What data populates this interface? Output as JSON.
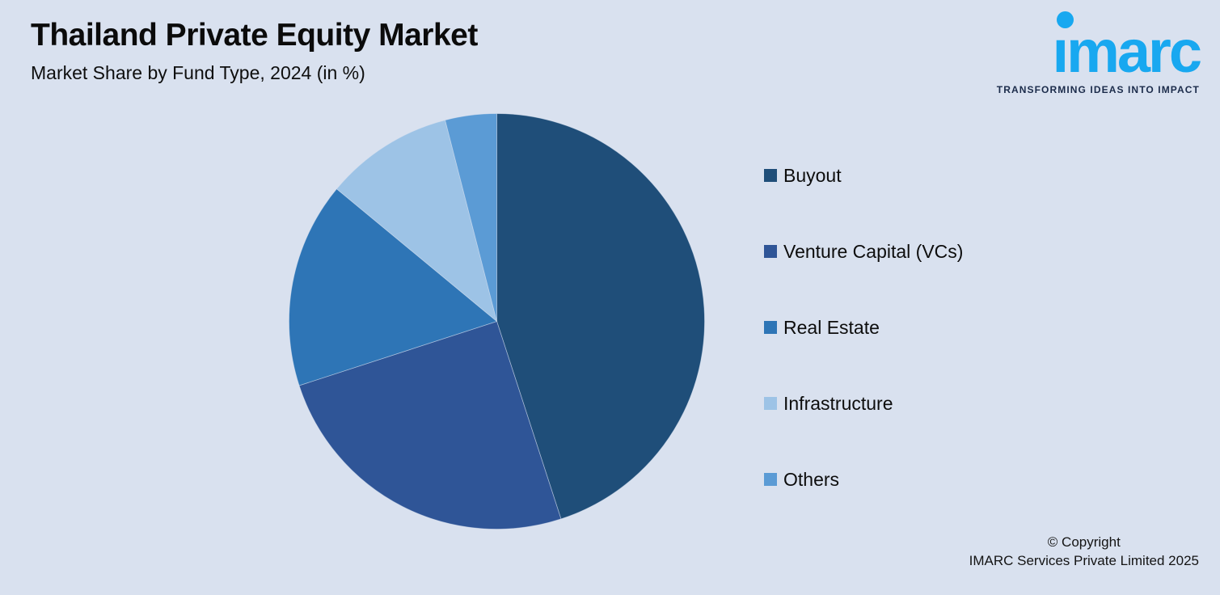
{
  "header": {
    "title": "Thailand Private Equity Market",
    "subtitle": "Market Share by Fund Type, 2024 (in %)"
  },
  "logo": {
    "text": "imarc",
    "tagline": "TRANSFORMING IDEAS INTO IMPACT",
    "brand_color": "#18A8F0",
    "tagline_color": "#1B2B4A"
  },
  "chart_data": {
    "type": "pie",
    "title": "Thailand Private Equity Market",
    "subtitle": "Market Share by Fund Type, 2024 (in %)",
    "unit": "%",
    "direction": "clockwise",
    "start_angle_deg": 0,
    "legend_position": "right",
    "labels": [
      "Buyout",
      "Venture Capital (VCs)",
      "Real Estate",
      "Infrastructure",
      "Others"
    ],
    "values": [
      45,
      25,
      16,
      10,
      4
    ],
    "colors": [
      "#1F4E79",
      "#2F5597",
      "#2E75B6",
      "#9DC3E6",
      "#5B9BD5"
    ]
  },
  "footer": {
    "line1": "© Copyright",
    "line2": "IMARC Services Private Limited 2025"
  },
  "colors": {
    "background": "#D9E1EF",
    "text": "#0B0B0B"
  }
}
